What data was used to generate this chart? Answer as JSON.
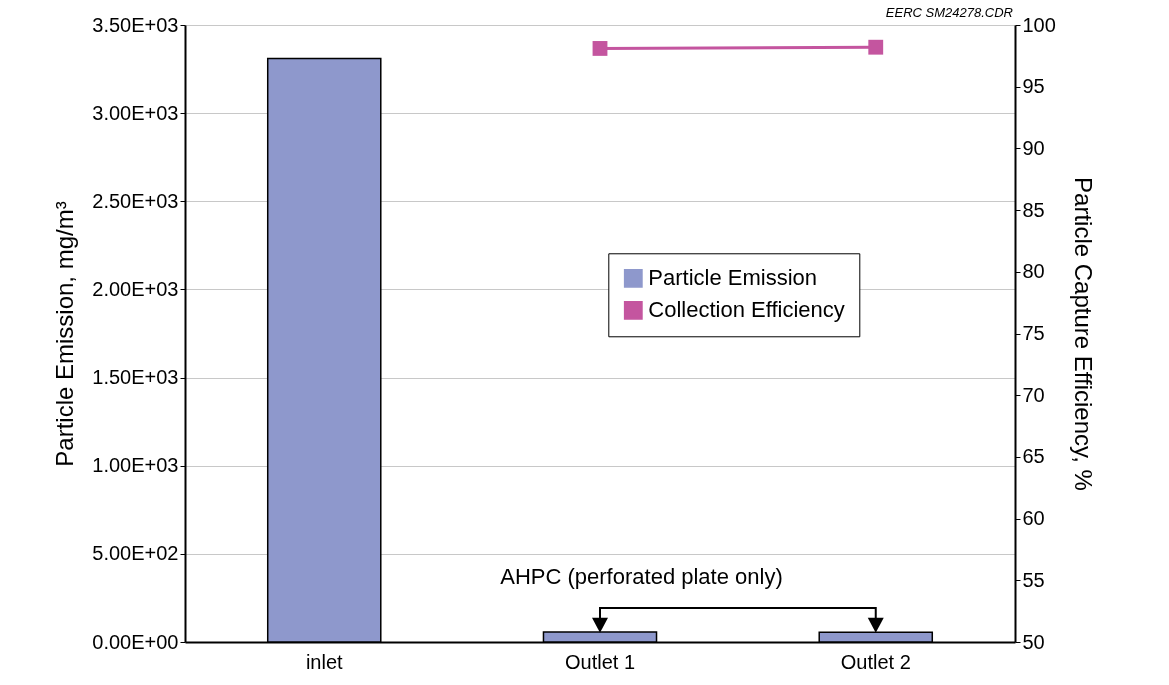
{
  "chart_data": {
    "type": "bar",
    "categories": [
      "inlet",
      "Outlet 1",
      "Outlet 2"
    ],
    "series": [
      {
        "name": "Particle Emission",
        "color": "#8e98cc",
        "values": [
          3310,
          57,
          55
        ]
      },
      {
        "name": "Collection Efficiency",
        "type": "line",
        "axis": "y2",
        "color": "#c4559f",
        "values": [
          null,
          98.1,
          98.2
        ]
      }
    ],
    "ylabel": "Particle Emission, mg/m³",
    "y2label": "Particle Capture Efficiency, %",
    "ylim": [
      0,
      3500
    ],
    "yticks": [
      {
        "value": 0,
        "label": "0.00E+00"
      },
      {
        "value": 500,
        "label": "5.00E+02"
      },
      {
        "value": 1000,
        "label": "1.00E+03"
      },
      {
        "value": 1500,
        "label": "1.50E+03"
      },
      {
        "value": 2000,
        "label": "2.00E+03"
      },
      {
        "value": 2500,
        "label": "2.50E+03"
      },
      {
        "value": 3000,
        "label": "3.00E+03"
      },
      {
        "value": 3500,
        "label": "3.50E+03"
      }
    ],
    "y2lim": [
      50,
      100
    ],
    "y2ticks": [
      50,
      55,
      60,
      65,
      70,
      75,
      80,
      85,
      90,
      95,
      100
    ],
    "annotations": [
      "EERC SM24278.CDR",
      "AHPC (perforated plate only)"
    ],
    "grid": "y",
    "legend": "right",
    "marker": "square"
  }
}
